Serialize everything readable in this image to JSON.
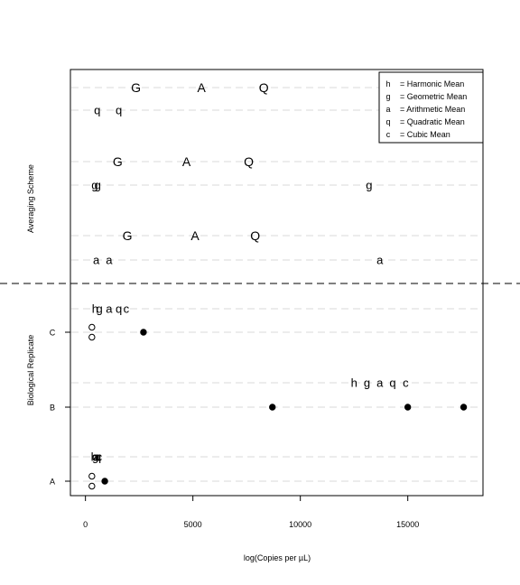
{
  "chart_data": {
    "type": "scatter",
    "xlabel": "log(Copies per µL)",
    "ylabel_top": "Averaging Scheme",
    "ylabel_bottom": "Biological Replicate",
    "xlim": [
      -700,
      18500
    ],
    "x_ticks": [
      0,
      5000,
      10000,
      15000
    ],
    "x_tick_labels": [
      "0",
      "5000",
      "10000",
      "15000"
    ],
    "y_categories": [
      "A",
      "B",
      "C"
    ],
    "grid": "horizontal dashed",
    "legend_position": "top-right",
    "legend": [
      {
        "symbol": "h",
        "label": "= Harmonic Mean"
      },
      {
        "symbol": "g",
        "label": "= Geometric Mean"
      },
      {
        "symbol": "a",
        "label": "= Arithmetic Mean"
      },
      {
        "symbol": "q",
        "label": "= Quadratic Mean"
      },
      {
        "symbol": "c",
        "label": "= Cubic Mean"
      }
    ],
    "scheme_rows": [
      [
        {
          "s": "G",
          "x": 2350
        },
        {
          "s": "A",
          "x": 5400
        },
        {
          "s": "Q",
          "x": 8300
        }
      ],
      [
        {
          "s": "q",
          "x": 550
        },
        {
          "s": "q",
          "x": 1550
        }
      ],
      [
        {
          "s": "G",
          "x": 1500
        },
        {
          "s": "A",
          "x": 4700
        },
        {
          "s": "Q",
          "x": 7600
        }
      ],
      [
        {
          "s": "g",
          "x": 430
        },
        {
          "s": "g",
          "x": 570
        },
        {
          "s": "g",
          "x": 13200
        }
      ],
      [
        {
          "s": "G",
          "x": 1950
        },
        {
          "s": "A",
          "x": 5100
        },
        {
          "s": "Q",
          "x": 7900
        }
      ],
      [
        {
          "s": "a",
          "x": 500
        },
        {
          "s": "a",
          "x": 1100
        },
        {
          "s": "a",
          "x": 13700
        }
      ]
    ],
    "replicate_means": [
      {
        "replicate": "C",
        "points": [
          {
            "s": "h",
            "x": 450
          },
          {
            "s": "g",
            "x": 650
          },
          {
            "s": "a",
            "x": 1100
          },
          {
            "s": "q",
            "x": 1550
          },
          {
            "s": "c",
            "x": 1900
          }
        ]
      },
      {
        "replicate": "B",
        "points": [
          {
            "s": "h",
            "x": 12500
          },
          {
            "s": "g",
            "x": 13100
          },
          {
            "s": "a",
            "x": 13700
          },
          {
            "s": "q",
            "x": 14300
          },
          {
            "s": "c",
            "x": 14900
          }
        ]
      },
      {
        "replicate": "A",
        "points": [
          {
            "s": "h",
            "x": 400
          },
          {
            "s": "g",
            "x": 460
          },
          {
            "s": "a",
            "x": 520
          },
          {
            "s": "q",
            "x": 580
          },
          {
            "s": "c",
            "x": 640
          }
        ]
      }
    ],
    "replicates": [
      {
        "name": "C",
        "filled": [
          2700
        ],
        "open": [
          300,
          300
        ]
      },
      {
        "name": "B",
        "filled": [
          8700,
          15000,
          17600
        ],
        "open": []
      },
      {
        "name": "A",
        "filled": [
          900
        ],
        "open": [
          300,
          300
        ]
      }
    ]
  }
}
